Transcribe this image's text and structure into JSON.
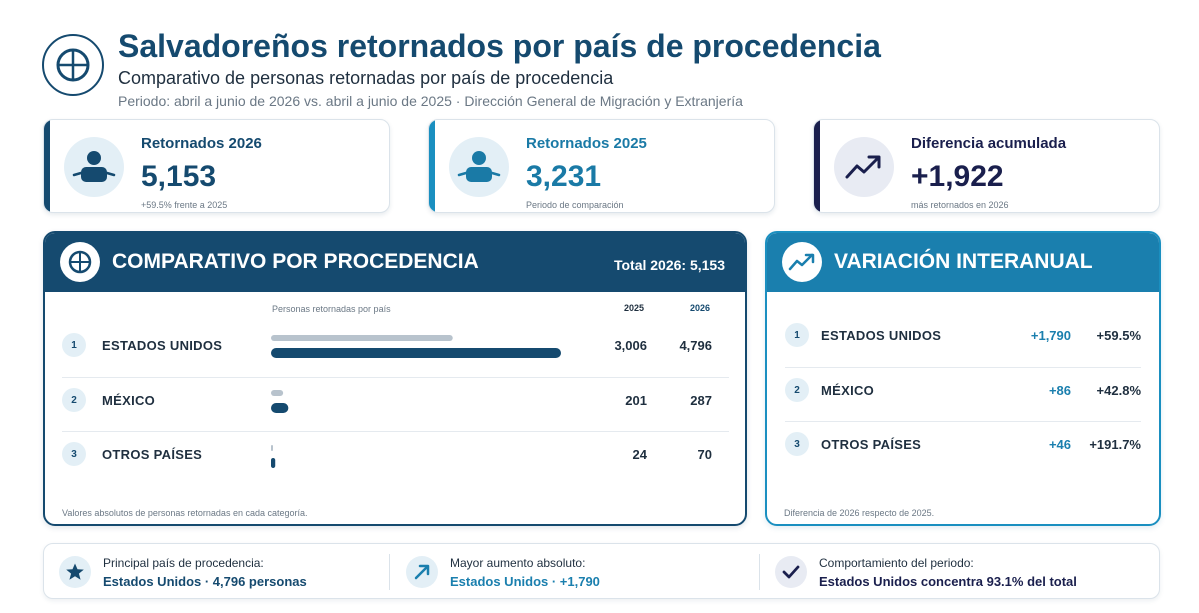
{
  "header": {
    "title": "Salvadoreños retornados por país de procedencia",
    "subtitle": "Comparativo de personas retornadas por país de procedencia",
    "period": "Periodo: abril a junio de 2026 vs. abril a junio de 2025 · Dirección General de Migración y Extranjería"
  },
  "kpis": [
    {
      "label": "Retornados 2026",
      "value": "5,153",
      "note": "+59.5% frente a 2025",
      "icon": "person-icon",
      "color": "#154a6f"
    },
    {
      "label": "Retornados 2025",
      "value": "3,231",
      "note": "Periodo de comparación",
      "icon": "person-icon",
      "color": "#1a8fc0"
    },
    {
      "label": "Diferencia acumulada",
      "value": "+1,922",
      "note": "más retornados en 2026",
      "icon": "trend-up-icon",
      "color": "#1a1f4d"
    }
  ],
  "comparison": {
    "title": "COMPARATIVO POR PROCEDENCIA",
    "total": "Total 2026: 5,153",
    "bars_header": "Personas retornadas por país",
    "year_a": "2025",
    "year_b": "2026",
    "footnote": "Valores absolutos de personas retornadas en cada categoría.",
    "rows": [
      {
        "num": "1",
        "name": "ESTADOS UNIDOS",
        "v2025": "3,006",
        "v2026": "4,796"
      },
      {
        "num": "2",
        "name": "MÉXICO",
        "v2025": "201",
        "v2026": "287"
      },
      {
        "num": "3",
        "name": "OTROS PAÍSES",
        "v2025": "24",
        "v2026": "70"
      }
    ]
  },
  "variation": {
    "title": "VARIACIÓN INTERANUAL",
    "footnote": "Diferencia de 2026 respecto de 2025.",
    "rows": [
      {
        "num": "1",
        "name": "ESTADOS UNIDOS",
        "abs": "+1,790",
        "pct": "+59.5%"
      },
      {
        "num": "2",
        "name": "MÉXICO",
        "abs": "+86",
        "pct": "+42.8%"
      },
      {
        "num": "3",
        "name": "OTROS PAÍSES",
        "abs": "+46",
        "pct": "+191.7%"
      }
    ]
  },
  "summary": [
    {
      "label": "Principal país de procedencia:",
      "value": "Estados Unidos · 4,796 personas",
      "icon": "star-icon"
    },
    {
      "label": "Mayor aumento absoluto:",
      "value": "Estados Unidos · +1,790",
      "icon": "arrow-up-right-icon"
    },
    {
      "label": "Comportamiento del periodo:",
      "value": "Estados Unidos concentra 93.1% del total",
      "icon": "check-icon"
    }
  ],
  "colors": {
    "navy": "#154a6f",
    "teal": "#1a8fc0",
    "dark": "#1a1f4d",
    "bar2025": "#b8c3cd",
    "bar2026": "#154a6f"
  },
  "chart_data": {
    "type": "bar",
    "orientation": "horizontal",
    "categories": [
      "ESTADOS UNIDOS",
      "MÉXICO",
      "OTROS PAÍSES"
    ],
    "series": [
      {
        "name": "2025",
        "values": [
          3006,
          201,
          24
        ]
      },
      {
        "name": "2026",
        "values": [
          4796,
          287,
          70
        ]
      }
    ],
    "title": "COMPARATIVO POR PROCEDENCIA",
    "xlabel": "Personas retornadas por país",
    "ylabel": ""
  }
}
